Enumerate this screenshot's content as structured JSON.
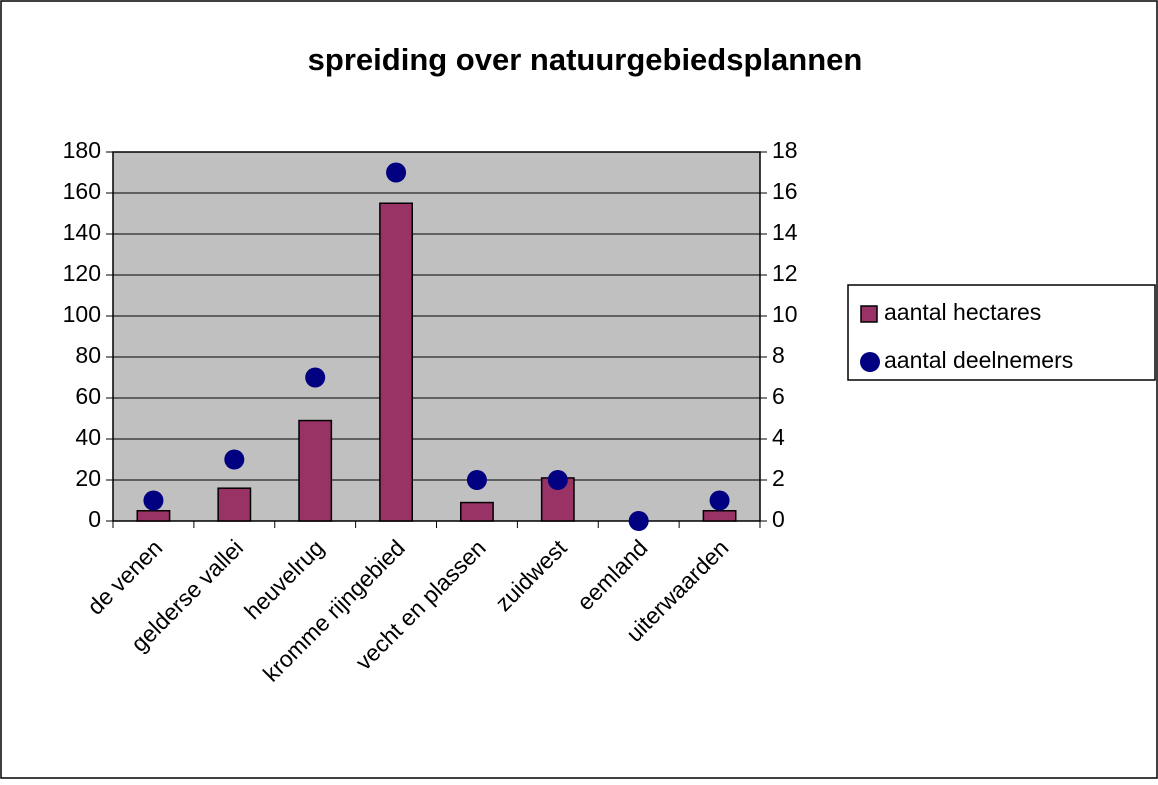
{
  "chart_data": {
    "type": "bar",
    "title": "spreiding over natuurgebiedsplannen",
    "categories": [
      "de venen",
      "gelderse vallei",
      "heuvelrug",
      "kromme rijngebied",
      "vecht en plassen",
      "zuidwest",
      "eemland",
      "uiterwaarden"
    ],
    "series": [
      {
        "name": "aantal hectares",
        "type": "bar",
        "color": "#993366",
        "values": [
          5,
          16,
          49,
          155,
          9,
          21,
          0,
          5
        ]
      },
      {
        "name": "aantal deelnemers",
        "type": "scatter",
        "axis": "y2",
        "color": "#000080",
        "values": [
          1,
          3,
          7,
          17,
          2,
          2,
          0,
          1
        ]
      }
    ],
    "ylim": [
      0,
      180
    ],
    "yticks": [
      0,
      20,
      40,
      60,
      80,
      100,
      120,
      140,
      160,
      180
    ],
    "y2lim": [
      0,
      18
    ],
    "y2ticks": [
      0,
      2,
      4,
      6,
      8,
      10,
      12,
      14,
      16,
      18
    ],
    "grid": true,
    "legend": "right",
    "plot_background": "#c0c0c0"
  }
}
